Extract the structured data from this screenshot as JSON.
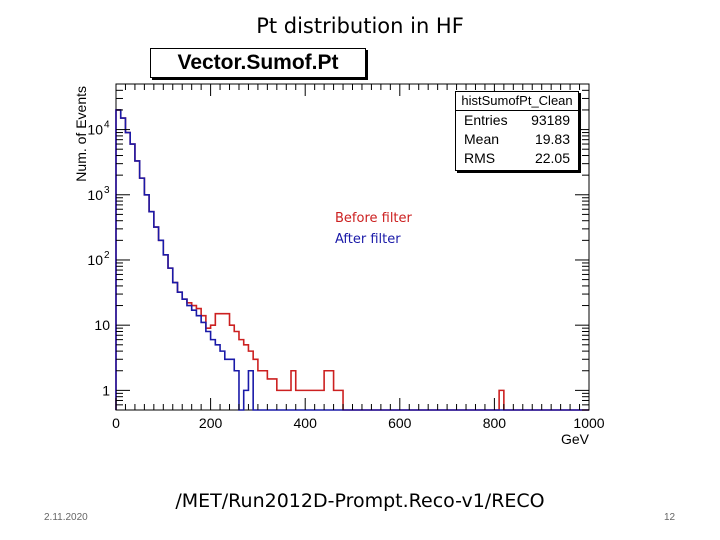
{
  "slide": {
    "title": "Pt distribution in HF",
    "path": "/MET/Run2012D-Prompt.Reco-v1/RECO",
    "date": "2.11.2020",
    "page": "12"
  },
  "chart_data": {
    "type": "histogram",
    "title": "Vector.Sumof.Pt",
    "xlabel": "GeV",
    "ylabel": "Num. of Events",
    "xlim": [
      0,
      1000
    ],
    "ylim": [
      0.5,
      50000
    ],
    "yscale": "log",
    "x_ticks": [
      0,
      200,
      400,
      600,
      800,
      1000
    ],
    "y_ticks": [
      {
        "value": 1,
        "label": "1"
      },
      {
        "value": 10,
        "label": "10"
      },
      {
        "value": 100,
        "label": "10",
        "exp": "2"
      },
      {
        "value": 1000,
        "label": "10",
        "exp": "3"
      },
      {
        "value": 10000,
        "label": "10",
        "exp": "4"
      }
    ],
    "stats": {
      "name": "histSumofPt_Clean",
      "rows": [
        {
          "label": "Entries",
          "value": "93189"
        },
        {
          "label": "Mean",
          "value": "19.83"
        },
        {
          "label": "RMS",
          "value": "22.05"
        }
      ]
    },
    "legend": [
      {
        "name": "Before filter",
        "color": "#cc2020"
      },
      {
        "name": "After filter",
        "color": "#1a1aa8"
      }
    ],
    "bin_width": 10,
    "series": [
      {
        "name": "Before filter",
        "color": "#cc2020",
        "values": [
          20000,
          15000,
          9000,
          6000,
          3300,
          1800,
          1000,
          550,
          320,
          200,
          120,
          75,
          45,
          32,
          25,
          22,
          20,
          18,
          14,
          9,
          10,
          15,
          15,
          15,
          10,
          8,
          6,
          5,
          4,
          3,
          2,
          2,
          1.5,
          1.5,
          1,
          1,
          1,
          2,
          1,
          1,
          1,
          1,
          1,
          1,
          2,
          2,
          1,
          1,
          0,
          0,
          0,
          0,
          0,
          0,
          0,
          0,
          0,
          0,
          0,
          0,
          0,
          0,
          0,
          0,
          0,
          0,
          0,
          0,
          0,
          0,
          0,
          0,
          0,
          0,
          0,
          0,
          0,
          0,
          0,
          0,
          0,
          1,
          0,
          0,
          0,
          0,
          0,
          0,
          0,
          0,
          0,
          0,
          0,
          0,
          0,
          0,
          0,
          0,
          0,
          0
        ]
      },
      {
        "name": "After filter",
        "color": "#1a1aa8",
        "values": [
          20000,
          15000,
          9000,
          6000,
          3300,
          1800,
          1000,
          550,
          320,
          200,
          120,
          75,
          45,
          32,
          25,
          20,
          17,
          14,
          11,
          8,
          6,
          5,
          4,
          3,
          3,
          2,
          0,
          1,
          2,
          0,
          0,
          0,
          0,
          0,
          0,
          0,
          0,
          0,
          0,
          0,
          0,
          0,
          0,
          0,
          0,
          0,
          0,
          0,
          0,
          0,
          0,
          0,
          0,
          0,
          0,
          0,
          0,
          0,
          0,
          0,
          0,
          0,
          0,
          0,
          0,
          0,
          0,
          0,
          0,
          0,
          0,
          0,
          0,
          0,
          0,
          0,
          0,
          0,
          0,
          0,
          0,
          0,
          0,
          0,
          0,
          0,
          0,
          0,
          0,
          0,
          0,
          0,
          0,
          0,
          0,
          0,
          0,
          0,
          0,
          0
        ]
      }
    ]
  }
}
